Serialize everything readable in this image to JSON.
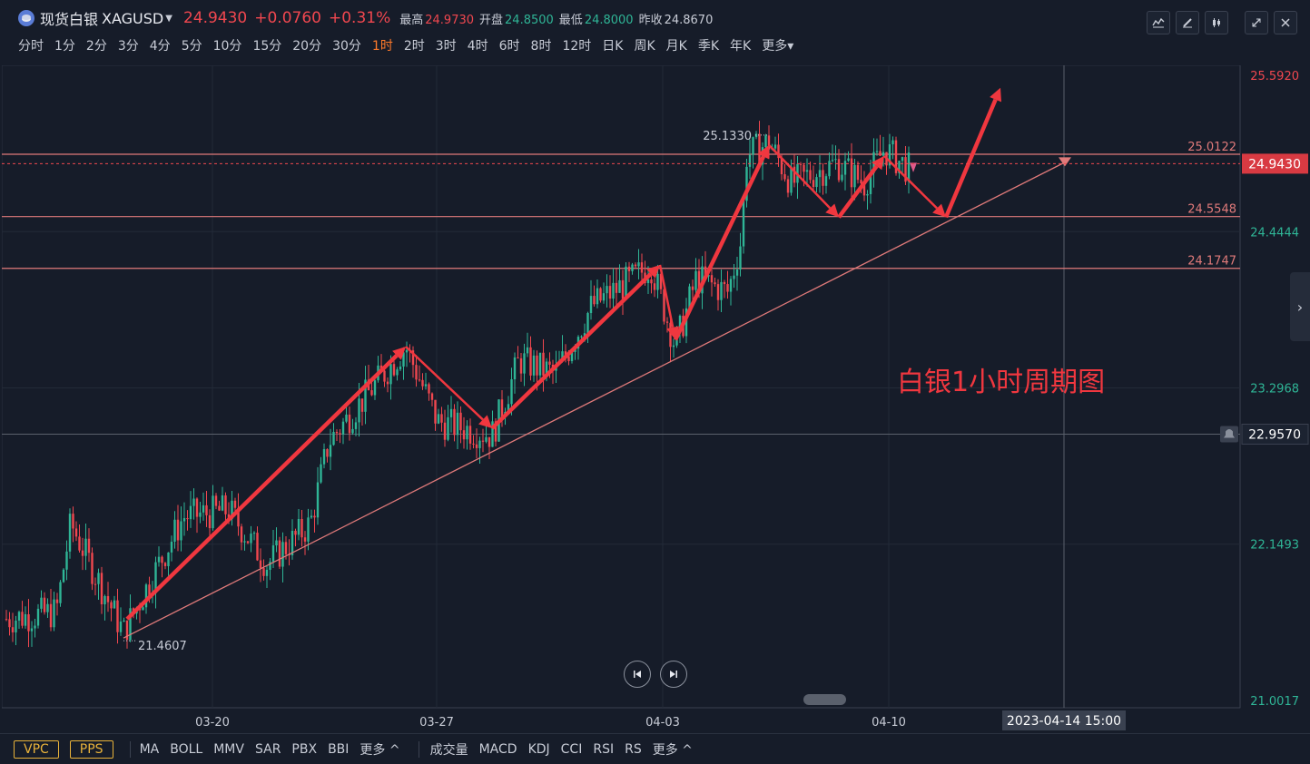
{
  "header": {
    "name": "现货白银",
    "code": "XAGUSD",
    "price": "24.9430",
    "change": "+0.0760",
    "change_pct": "+0.31%",
    "stats": [
      {
        "label": "最高",
        "value": "24.9730",
        "color": "red"
      },
      {
        "label": "开盘",
        "value": "24.8500",
        "color": "green"
      },
      {
        "label": "最低",
        "value": "24.8000",
        "color": "green"
      },
      {
        "label": "昨收",
        "value": "24.8670",
        "color": "gray"
      }
    ]
  },
  "toolbar_icons": [
    "line-chart-icon",
    "draw-pen-icon",
    "candlestick-icon",
    "expand-icon",
    "close-icon"
  ],
  "periods": [
    "分时",
    "1分",
    "2分",
    "3分",
    "4分",
    "5分",
    "10分",
    "15分",
    "20分",
    "30分",
    "1时",
    "2时",
    "3时",
    "4时",
    "6时",
    "8时",
    "12时",
    "日K",
    "周K",
    "月K",
    "季K",
    "年K",
    "更多"
  ],
  "active_period": "1时",
  "annotation": "白银1小时周期图",
  "chart_data": {
    "type": "candlestick",
    "title": "",
    "timeframe": "1时",
    "x_tick_labels": [
      "03-20",
      "03-27",
      "04-03",
      "04-10"
    ],
    "crosshair_time": "2023-04-14 15:00",
    "y_axis_labels": [
      "25.5920",
      "24.4444",
      "23.2968",
      "22.1493",
      "21.0017"
    ],
    "ylim": [
      21.0017,
      25.592
    ],
    "current_price": "24.9430",
    "crosshair_price": "22.9570",
    "high_marker": "25.1330",
    "low_marker": "21.4607",
    "horizontal_lines": [
      {
        "label": "25.0122",
        "value": 25.0122
      },
      {
        "label": "24.5548",
        "value": 24.5548
      },
      {
        "label": "24.1747",
        "value": 24.1747
      }
    ],
    "path_points": [
      21.6,
      22.6,
      23.6,
      23.0,
      23.6,
      24.3,
      23.8,
      24.25,
      25.1,
      24.45,
      24.9,
      24.45,
      25.5
    ],
    "trendline": [
      21.46,
      24.95
    ],
    "colors": {
      "up": "#2fb596",
      "down": "#f0474f",
      "annotation": "#f0373f",
      "support": "#e07a7a"
    }
  },
  "bottom_bar": {
    "buttons": [
      "VPC",
      "PPS"
    ],
    "main_indicators": [
      "MA",
      "BOLL",
      "MMV",
      "SAR",
      "PBX",
      "BBI",
      "更多 ^"
    ],
    "sub_indicators": [
      "成交量",
      "MACD",
      "KDJ",
      "CCI",
      "RSI",
      "RS",
      "更多 ^"
    ]
  }
}
